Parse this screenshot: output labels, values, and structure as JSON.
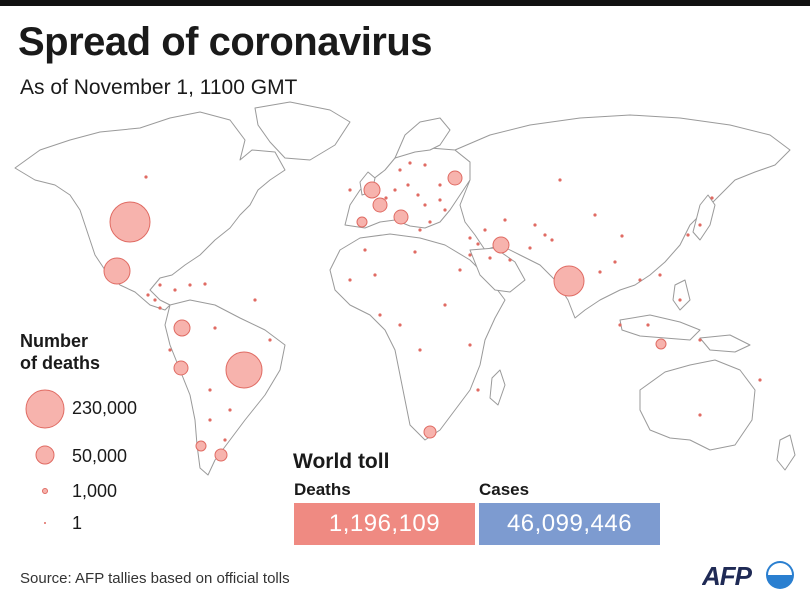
{
  "header": {
    "title": "Spread of coronavirus",
    "subtitle": "As of November 1, 1100 GMT"
  },
  "legend": {
    "title_line1": "Number",
    "title_line2": "of deaths",
    "items": [
      {
        "label": "230,000",
        "value": 230000
      },
      {
        "label": "50,000",
        "value": 50000
      },
      {
        "label": "1,000",
        "value": 1000
      },
      {
        "label": "1",
        "value": 1
      }
    ]
  },
  "toll": {
    "title": "World toll",
    "deaths_label": "Deaths",
    "deaths_value": "1,196,109",
    "cases_label": "Cases",
    "cases_value": "46,099,446"
  },
  "footer": {
    "source": "Source: AFP tallies based on official tolls",
    "logo": "AFP"
  },
  "colors": {
    "bubble_fill": "#f7b3ad",
    "bubble_stroke": "#e06b63",
    "deaths_box": "#ef8a82",
    "cases_box": "#7d9bd0",
    "land_stroke": "#9a9a9a"
  }
}
